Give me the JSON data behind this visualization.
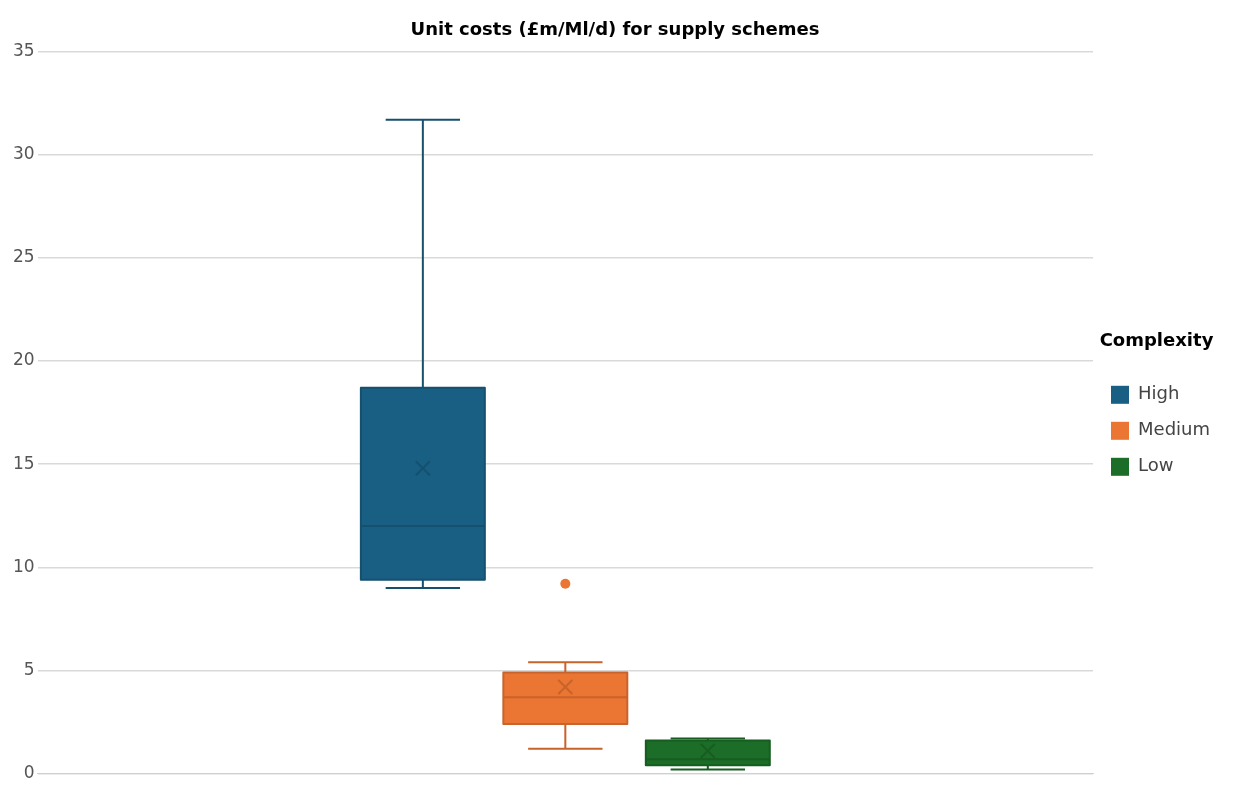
{
  "chart_data": {
    "type": "box",
    "title": "Unit costs (£m/Ml/d) for supply schemes",
    "legend_title": "Complexity",
    "categories": [
      null
    ],
    "series": [
      {
        "name": "High",
        "color": "#195e83",
        "boxes": [
          {
            "low": 9.0,
            "q1": 9.4,
            "median": 12.0,
            "q3": 18.7,
            "high": 31.7,
            "mean": 14.8
          }
        ]
      },
      {
        "name": "Medium",
        "color": "#eb7532",
        "boxes": [
          {
            "low": 1.2,
            "q1": 2.4,
            "median": 3.7,
            "q3": 4.9,
            "high": 5.4,
            "mean": 4.2,
            "outliers": [
              9.2
            ]
          }
        ]
      },
      {
        "name": "Low",
        "color": "#1b6d27",
        "boxes": [
          {
            "low": 0.2,
            "q1": 0.4,
            "median": 0.7,
            "q3": 1.6,
            "high": 1.7,
            "mean": 1.1
          }
        ]
      }
    ],
    "ylim": [
      0,
      35
    ],
    "yticks": [
      0,
      5,
      10,
      15,
      20,
      25,
      30,
      35
    ],
    "grid": "y",
    "legend": "right"
  }
}
